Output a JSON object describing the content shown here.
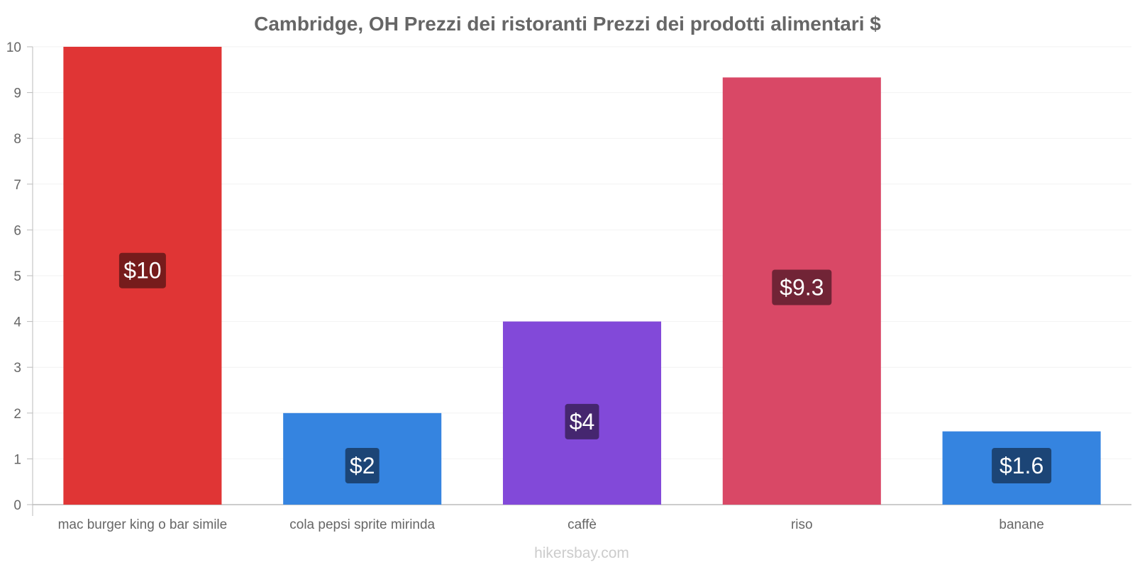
{
  "chart_data": {
    "type": "bar",
    "title": "Cambridge, OH Prezzi dei ristoranti Prezzi dei prodotti alimentari $",
    "categories": [
      "mac burger king o bar simile",
      "cola pepsi sprite mirinda",
      "caffè",
      "riso",
      "banane"
    ],
    "values": [
      10,
      2,
      4,
      9.33,
      1.6
    ],
    "value_labels": [
      "$10",
      "$2",
      "$4",
      "$9.3",
      "$1.6"
    ],
    "colors": [
      "#e03535",
      "#3584e0",
      "#8249d9",
      "#d94866",
      "#3584e0"
    ],
    "label_colors": [
      "#761c1c",
      "#1c4576",
      "#45266f",
      "#712436",
      "#1c4576"
    ],
    "ylim": [
      0,
      10
    ],
    "yticks": [
      0,
      1,
      2,
      3,
      4,
      5,
      6,
      7,
      8,
      9,
      10
    ],
    "xlabel": "",
    "ylabel": "",
    "grid": true
  },
  "watermark": "hikersbay.com"
}
